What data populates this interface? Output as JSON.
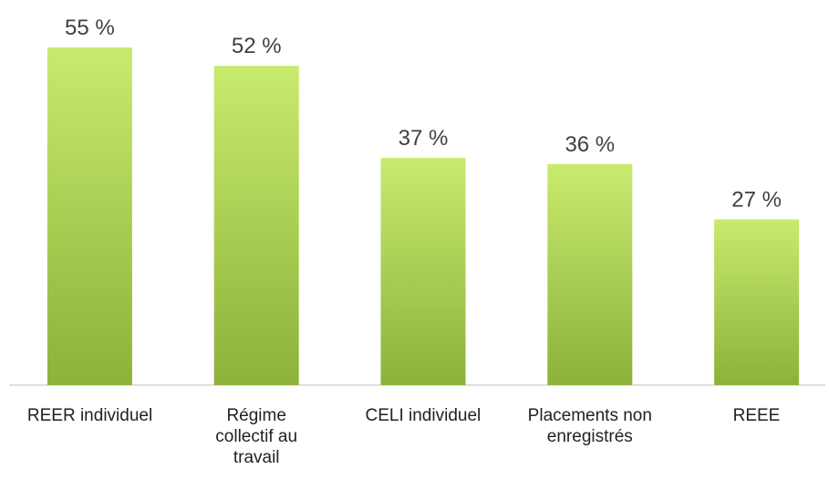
{
  "chart_data": {
    "type": "bar",
    "categories": [
      "REER individuel",
      "Régime collectif au travail",
      "CELI individuel",
      "Placements non enregistrés",
      "REEE"
    ],
    "values": [
      55,
      52,
      37,
      36,
      27
    ],
    "value_labels": [
      "55 %",
      "52 %",
      "37 %",
      "36 %",
      "27 %"
    ],
    "color": "#a9cf4c"
  }
}
